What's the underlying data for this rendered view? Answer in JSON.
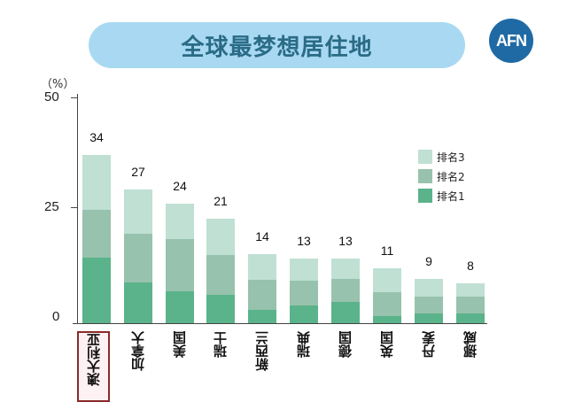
{
  "header": {
    "title": "全球最梦想居住地",
    "logo_text": "AFN"
  },
  "chart_data": {
    "type": "bar",
    "stacked": true,
    "title": "全球最梦想居住地",
    "xlabel": "",
    "ylabel": "（%）",
    "ylim": [
      0,
      50
    ],
    "yticks": [
      0,
      25,
      50
    ],
    "grid": false,
    "legend_position": "upper right",
    "categories": [
      "澳大利亚",
      "加拿大",
      "美国",
      "瑞士",
      "新西兰",
      "瑞典",
      "德国",
      "英国",
      "丹麦",
      "挪威"
    ],
    "totals": [
      34,
      27,
      24,
      21,
      14,
      13,
      13,
      11,
      9,
      8
    ],
    "series": [
      {
        "name": "排名1",
        "color": "#5ab38a",
        "values": [
          13.2,
          8.2,
          6.4,
          5.8,
          2.7,
          3.6,
          4.2,
          1.5,
          1.9,
          2.0
        ]
      },
      {
        "name": "排名2",
        "color": "#97c2ad",
        "values": [
          9.7,
          9.8,
          10.5,
          7.9,
          6.0,
          5.0,
          4.7,
          4.8,
          3.5,
          3.3
        ]
      },
      {
        "name": "排名3",
        "color": "#bfe0d3",
        "values": [
          11.1,
          9.0,
          7.2,
          7.4,
          5.3,
          4.4,
          4.1,
          4.8,
          3.5,
          2.7
        ]
      }
    ],
    "highlighted_category": "澳大利亚"
  },
  "axis": {
    "unit_label": "（%）",
    "ticks": [
      "50",
      "25",
      "0"
    ]
  },
  "legend": [
    {
      "label": "排名3",
      "color": "#bfe0d3"
    },
    {
      "label": "排名2",
      "color": "#97c2ad"
    },
    {
      "label": "排名1",
      "color": "#5ab38a"
    }
  ]
}
